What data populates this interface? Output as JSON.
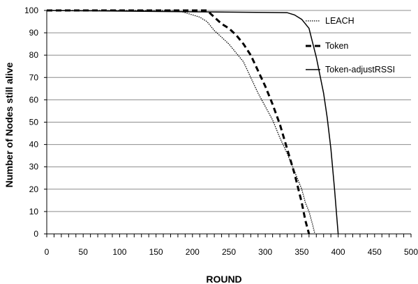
{
  "chart_data": {
    "type": "line",
    "title": "",
    "xlabel": "ROUND",
    "ylabel": "Number of Nodes still alive",
    "xlim": [
      0,
      500
    ],
    "ylim": [
      0,
      100
    ],
    "xticks": [
      0,
      50,
      100,
      150,
      200,
      250,
      300,
      350,
      400,
      450,
      500
    ],
    "yticks": [
      0,
      10,
      20,
      30,
      40,
      50,
      60,
      70,
      80,
      90,
      100
    ],
    "grid": "horizontal",
    "legend_position": "top-right",
    "series": [
      {
        "name": "LEACH",
        "style": "dotted",
        "color": "#000000",
        "x": [
          0,
          180,
          190,
          200,
          210,
          220,
          230,
          240,
          250,
          260,
          270,
          280,
          290,
          300,
          310,
          320,
          330,
          340,
          350,
          355,
          360,
          365,
          368
        ],
        "y": [
          100,
          100,
          99,
          98,
          97,
          95,
          91,
          88,
          85,
          81,
          77,
          70,
          63,
          57,
          51,
          43,
          36,
          28,
          20,
          14,
          10,
          4,
          0
        ]
      },
      {
        "name": "Token",
        "style": "dashed",
        "color": "#000000",
        "x": [
          0,
          220,
          230,
          240,
          250,
          260,
          270,
          280,
          290,
          300,
          310,
          320,
          330,
          340,
          350,
          355,
          360
        ],
        "y": [
          100,
          100,
          97,
          94,
          92,
          89,
          85,
          80,
          73,
          66,
          58,
          49,
          38,
          27,
          14,
          6,
          0
        ]
      },
      {
        "name": "Token-adjustRSSI",
        "style": "solid",
        "color": "#000000",
        "x": [
          0,
          330,
          340,
          350,
          360,
          370,
          380,
          385,
          390,
          395,
          398,
          400
        ],
        "y": [
          100,
          99,
          98,
          96,
          92,
          79,
          63,
          52,
          38,
          20,
          8,
          0
        ]
      }
    ]
  }
}
